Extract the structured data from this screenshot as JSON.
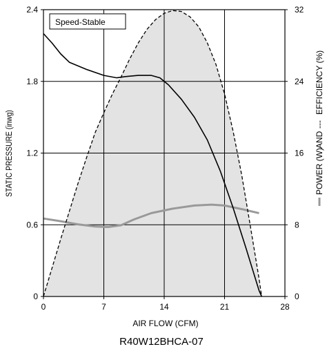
{
  "chart_data": {
    "type": "line",
    "legend_box": "Speed-Stable",
    "caption": "R40W12BHCA-07",
    "xlabel": "AIR FLOW (CFM)",
    "ylabel_left": "STATIC PRESSURE (inwg)",
    "ylabel_right_parts": [
      "POWER (W)",
      "AND",
      "EFFICIENCY (%)"
    ],
    "xlim": [
      0,
      28
    ],
    "ylim_left": [
      0,
      2.4
    ],
    "ylim_right": [
      0,
      32
    ],
    "x_ticks": [
      "0",
      "7",
      "14",
      "21",
      "28"
    ],
    "y_left_ticks": [
      "0",
      "0.6",
      "1.2",
      "1.8",
      "2.4"
    ],
    "y_right_ticks": [
      "0",
      "8",
      "16",
      "24",
      "32"
    ],
    "grid": true,
    "colors": {
      "pressure": "#000000",
      "power": "#999999",
      "efficiency": "#000000",
      "fill": "#e3e3e3"
    },
    "series": [
      {
        "name": "STATIC PRESSURE",
        "axis": "left",
        "style": "solid",
        "points": [
          [
            0,
            2.2
          ],
          [
            1,
            2.12
          ],
          [
            2,
            2.03
          ],
          [
            3,
            1.96
          ],
          [
            5,
            1.9
          ],
          [
            7,
            1.85
          ],
          [
            8.5,
            1.83
          ],
          [
            9.5,
            1.84
          ],
          [
            11,
            1.85
          ],
          [
            12.5,
            1.85
          ],
          [
            13.5,
            1.83
          ],
          [
            14.5,
            1.77
          ],
          [
            16,
            1.65
          ],
          [
            17.5,
            1.5
          ],
          [
            19,
            1.31
          ],
          [
            20.5,
            1.05
          ],
          [
            22,
            0.74
          ],
          [
            23.5,
            0.4
          ],
          [
            25,
            0.05
          ],
          [
            25.3,
            0
          ]
        ]
      },
      {
        "name": "POWER (W)",
        "axis": "right",
        "style": "solid-gray",
        "points": [
          [
            0,
            8.7
          ],
          [
            2,
            8.4
          ],
          [
            4,
            8.05
          ],
          [
            6,
            7.8
          ],
          [
            7.5,
            7.75
          ],
          [
            9,
            7.95
          ],
          [
            10.5,
            8.6
          ],
          [
            12.5,
            9.3
          ],
          [
            15,
            9.8
          ],
          [
            17.5,
            10.15
          ],
          [
            19.5,
            10.25
          ],
          [
            21,
            10.15
          ],
          [
            23,
            9.75
          ],
          [
            25,
            9.3
          ]
        ]
      },
      {
        "name": "EFFICIENCY (%)",
        "axis": "right",
        "style": "dashed",
        "points": [
          [
            0,
            0
          ],
          [
            1,
            3.2
          ],
          [
            2,
            6.4
          ],
          [
            3,
            9.5
          ],
          [
            4,
            12.6
          ],
          [
            5,
            15.5
          ],
          [
            6,
            18.3
          ],
          [
            7,
            20.5
          ],
          [
            8,
            22.6
          ],
          [
            9,
            24.5
          ],
          [
            10,
            26.5
          ],
          [
            11,
            28.3
          ],
          [
            12,
            29.8
          ],
          [
            13,
            30.9
          ],
          [
            14,
            31.6
          ],
          [
            15,
            31.9
          ],
          [
            16,
            31.8
          ],
          [
            17,
            31.2
          ],
          [
            18,
            30.1
          ],
          [
            19,
            28.3
          ],
          [
            20,
            25.9
          ],
          [
            21,
            22.6
          ],
          [
            22,
            18.4
          ],
          [
            23,
            13.5
          ],
          [
            24,
            7.8
          ],
          [
            25,
            2
          ],
          [
            25.3,
            0
          ]
        ]
      }
    ]
  }
}
